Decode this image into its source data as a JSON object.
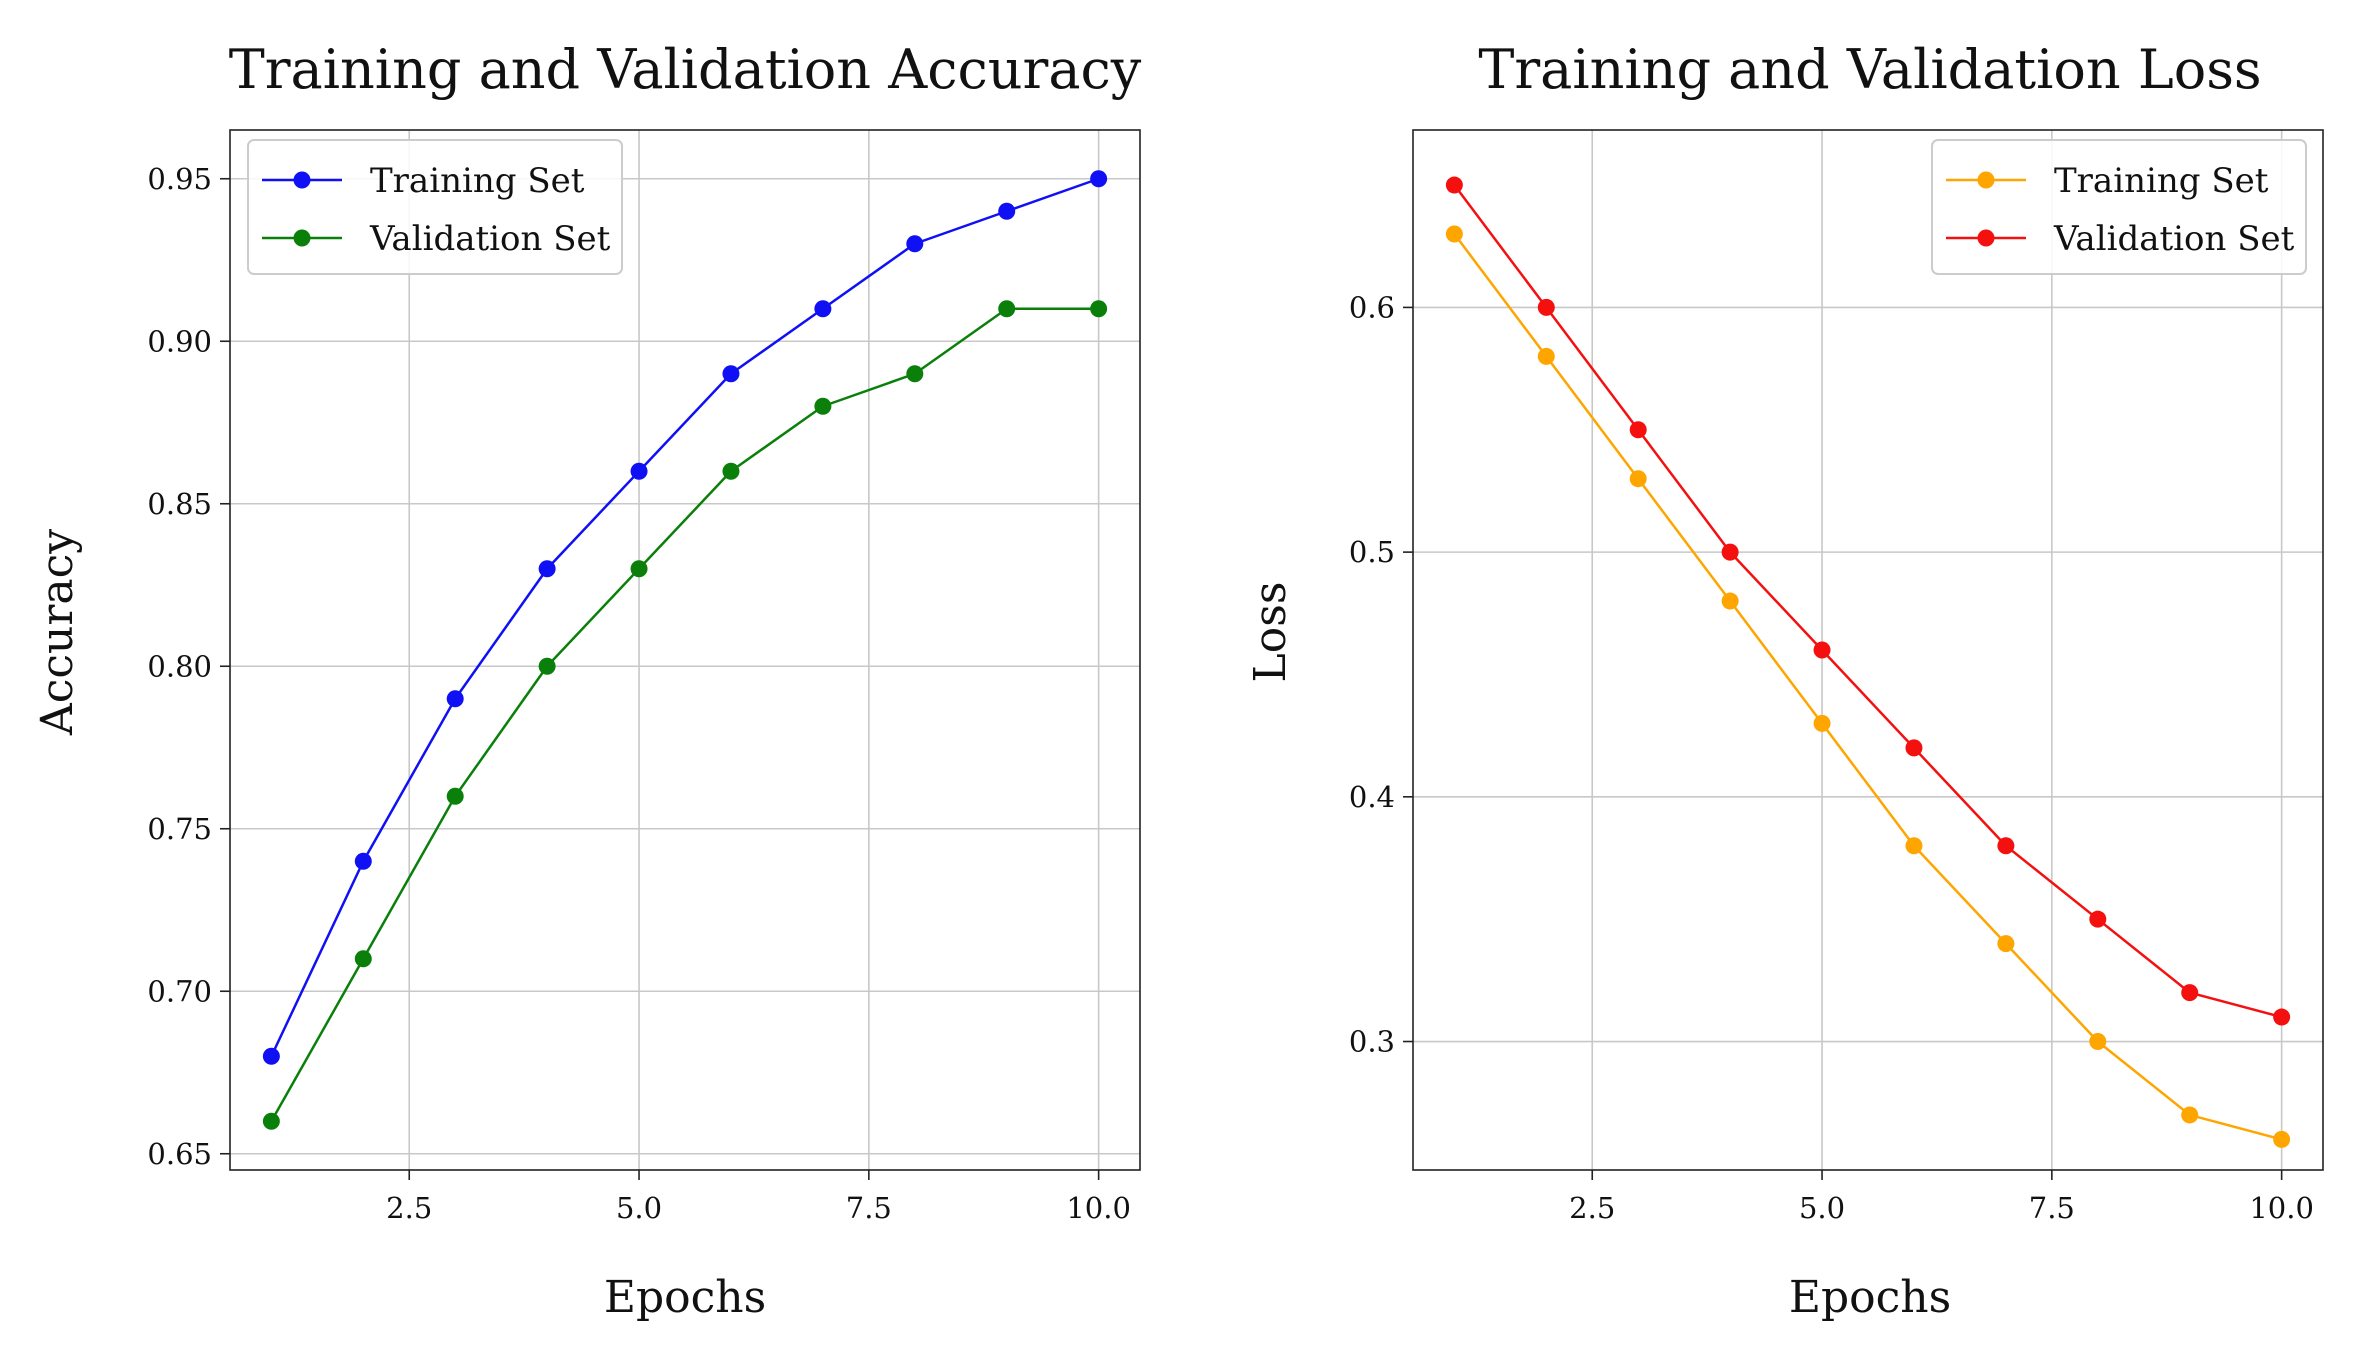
{
  "chart_data": [
    {
      "type": "line",
      "title": "Training and Validation Accuracy",
      "xlabel": "Epochs",
      "ylabel": "Accuracy",
      "x": [
        1,
        2,
        3,
        4,
        5,
        6,
        7,
        8,
        9,
        10
      ],
      "xlim": [
        0.55,
        10.45
      ],
      "ylim": [
        0.645,
        0.965
      ],
      "xticks": [
        2.5,
        5.0,
        7.5,
        10.0
      ],
      "xtick_labels": [
        "2.5",
        "5.0",
        "7.5",
        "10.0"
      ],
      "yticks": [
        0.65,
        0.7,
        0.75,
        0.8,
        0.85,
        0.9,
        0.95
      ],
      "ytick_labels": [
        "0.65",
        "0.70",
        "0.75",
        "0.80",
        "0.85",
        "0.90",
        "0.95"
      ],
      "grid": true,
      "legend_position": "top-left",
      "series": [
        {
          "name": "Training Set",
          "color": "#1010f5",
          "values": [
            0.68,
            0.74,
            0.79,
            0.83,
            0.86,
            0.89,
            0.91,
            0.93,
            0.94,
            0.95
          ]
        },
        {
          "name": "Validation Set",
          "color": "#0a800a",
          "values": [
            0.66,
            0.71,
            0.76,
            0.8,
            0.83,
            0.86,
            0.88,
            0.89,
            0.91,
            0.91
          ]
        }
      ]
    },
    {
      "type": "line",
      "title": "Training and Validation Loss",
      "xlabel": "Epochs",
      "ylabel": "Loss",
      "x": [
        1,
        2,
        3,
        4,
        5,
        6,
        7,
        8,
        9,
        10
      ],
      "xlim": [
        0.55,
        10.45
      ],
      "ylim": [
        0.2475,
        0.6725
      ],
      "xticks": [
        2.5,
        5.0,
        7.5,
        10.0
      ],
      "xtick_labels": [
        "2.5",
        "5.0",
        "7.5",
        "10.0"
      ],
      "yticks": [
        0.3,
        0.4,
        0.5,
        0.6
      ],
      "ytick_labels": [
        "0.3",
        "0.4",
        "0.5",
        "0.6"
      ],
      "grid": true,
      "legend_position": "top-right",
      "series": [
        {
          "name": "Training Set",
          "color": "#ffa500",
          "values": [
            0.63,
            0.58,
            0.53,
            0.48,
            0.43,
            0.38,
            0.34,
            0.3,
            0.27,
            0.26
          ]
        },
        {
          "name": "Validation Set",
          "color": "#f51010",
          "values": [
            0.65,
            0.6,
            0.55,
            0.5,
            0.46,
            0.42,
            0.38,
            0.35,
            0.32,
            0.31
          ]
        }
      ]
    }
  ]
}
